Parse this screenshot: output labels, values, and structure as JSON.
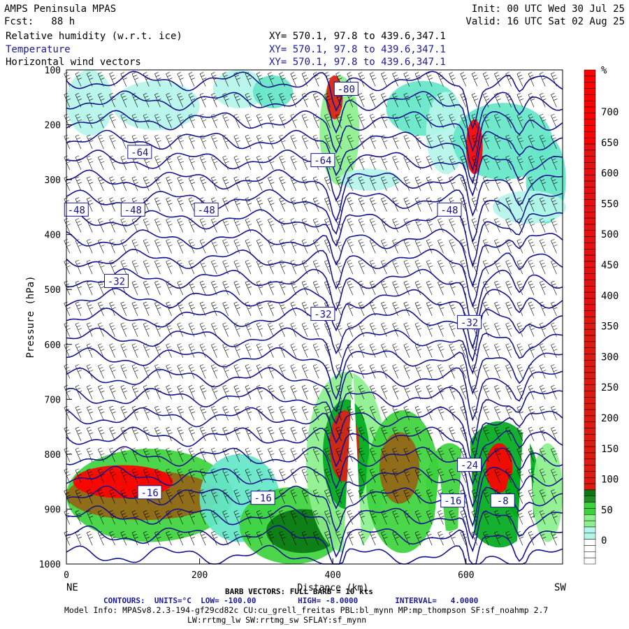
{
  "header": {
    "model": "AMPS Peninsula MPAS",
    "fcst": "Fcst:   88 h",
    "init": "Init: 00 UTC Wed 30 Jul 25",
    "valid": "Valid: 16 UTC Sat 02 Aug 25",
    "fields": [
      {
        "name": "Relative humidity (w.r.t. ice)",
        "xy": "XY= 570.1, 97.8 to 439.6,347.1"
      },
      {
        "name": "Temperature",
        "xy": "XY= 570.1, 97.8 to 439.6,347.1"
      },
      {
        "name": "Horizontal wind vectors",
        "xy": "XY= 570.1, 97.8 to 439.6,347.1"
      }
    ]
  },
  "colors": {
    "contour": "#14148c",
    "barb": "#000000",
    "rh_scale": [
      "#ffffff",
      "#ffffff",
      "#b4f5ea",
      "#64e6c8",
      "#8cf08c",
      "#3cd23c",
      "#00aa1e",
      "#0a7814",
      "#326414",
      "#966414",
      "#dc1e14",
      "#ff0000"
    ]
  },
  "chart_data": {
    "type": "heatmap",
    "title": "",
    "xlabel": "Distance (km)",
    "ylabel": "Pressure (hPa)",
    "x_ticks": [
      "0",
      "200",
      "400",
      "600"
    ],
    "y_ticks": [
      "100",
      "200",
      "300",
      "400",
      "500",
      "600",
      "700",
      "800",
      "900",
      "1000"
    ],
    "xlim": [
      0,
      745
    ],
    "ylim": [
      1000,
      100
    ],
    "end_labels": {
      "left": "NE",
      "right": "SW"
    },
    "colorbar": {
      "unit": "%",
      "labels": [
        "700",
        "650",
        "600",
        "550",
        "500",
        "450",
        "400",
        "350",
        "300",
        "250",
        "200",
        "150",
        "100",
        "50",
        "0"
      ]
    },
    "temperature_contours": {
      "units": "°C",
      "low": -100.0,
      "high": -8.0,
      "interval": 4.0,
      "labels": [
        {
          "text": "-80",
          "x": 420,
          "p": 135
        },
        {
          "text": "-64",
          "x": 110,
          "p": 250
        },
        {
          "text": "-64",
          "x": 385,
          "p": 265
        },
        {
          "text": "-48",
          "x": 15,
          "p": 355
        },
        {
          "text": "-48",
          "x": 100,
          "p": 355
        },
        {
          "text": "-48",
          "x": 210,
          "p": 355
        },
        {
          "text": "-48",
          "x": 575,
          "p": 355
        },
        {
          "text": "-32",
          "x": 75,
          "p": 485
        },
        {
          "text": "-32",
          "x": 385,
          "p": 545
        },
        {
          "text": "-32",
          "x": 605,
          "p": 560
        },
        {
          "text": "-24",
          "x": 605,
          "p": 820
        },
        {
          "text": "-16",
          "x": 125,
          "p": 870
        },
        {
          "text": "-16",
          "x": 295,
          "p": 880
        },
        {
          "text": "-16",
          "x": 580,
          "p": 885
        },
        {
          "text": "-8",
          "x": 655,
          "p": 885
        }
      ]
    },
    "barb_note": "BARB VECTORS: FULL BARB = 10 kts"
  },
  "footer": {
    "contours": "CONTOURS:  UNITS=°C  LOW= -100.00         HIGH= -8.0000        INTERVAL=   4.0000",
    "model_info": "Model Info: MPASv8.2.3-194-gf29cd82c CU:cu_grell_freitas PBL:bl_mynn MP:mp_thompson SF:sf_noahmp 2.7",
    "model_info2": "LW:rrtmg_lw SW:rrtmg_sw SFLAY:sf_mynn"
  }
}
